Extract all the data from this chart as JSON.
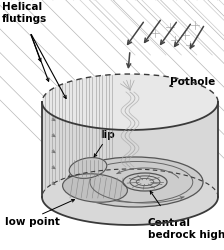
{
  "background_color": "#ffffff",
  "fig_width": 2.24,
  "fig_height": 2.5,
  "dpi": 100,
  "labels": {
    "helical_flutings": "Helical\nflutings",
    "pothole": "Pothole",
    "lip": "lip",
    "low_point": "low point",
    "central_bedrock_high": "Central\nbedrock high"
  },
  "colors": {
    "line": "#3a3a3a",
    "fill_side": "#d4d4d4",
    "fill_floor": "#c8c8c8",
    "fill_interior": "#e0e0e0",
    "text": "#000000",
    "diag_line": "#aaaaaa",
    "hatch": "#888888",
    "arrow_dark": "#444444",
    "arrow_medium": "#666666"
  }
}
